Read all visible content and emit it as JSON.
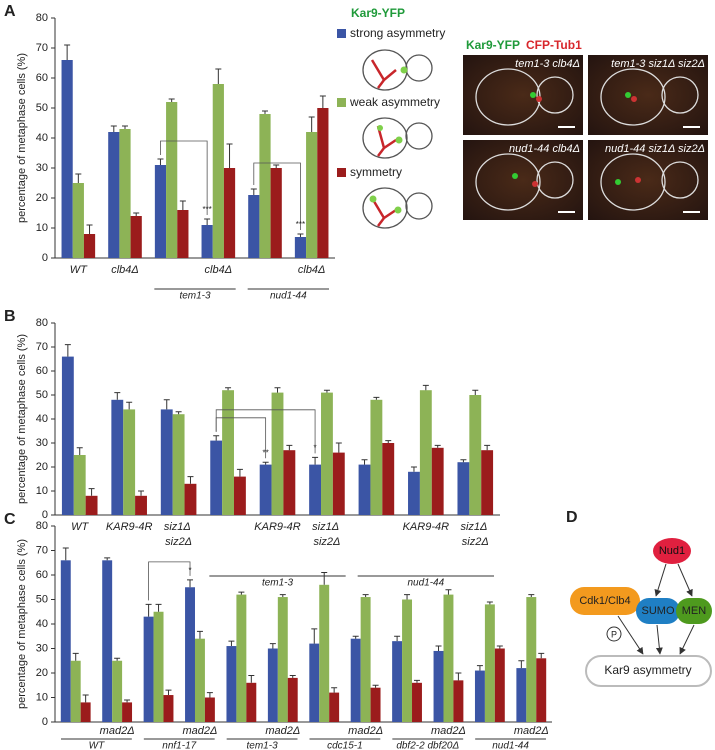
{
  "chart_data": [
    {
      "type": "bar",
      "label": "A",
      "ylabel": "percentage of metaphase cells (%)",
      "categories": [
        "WT",
        "clb4Δ",
        null,
        "clb4Δ",
        null,
        "clb4Δ"
      ],
      "groups": [
        {
          "label": "tem1-3",
          "span": [
            2,
            3
          ]
        },
        {
          "label": "nud1-44",
          "span": [
            4,
            5
          ]
        }
      ],
      "series": [
        {
          "name": "strong asymmetry",
          "color": "#3b55a5",
          "values": [
            66,
            42,
            31,
            11,
            21,
            7
          ],
          "errors": [
            5,
            2,
            2,
            2,
            2,
            1
          ]
        },
        {
          "name": "weak asymmetry",
          "color": "#8db356",
          "values": [
            25,
            43,
            52,
            58,
            48,
            42
          ],
          "errors": [
            3,
            1,
            1,
            5,
            1,
            5
          ]
        },
        {
          "name": "symmetry",
          "color": "#9b1c1c",
          "values": [
            8,
            14,
            16,
            30,
            30,
            50
          ],
          "errors": [
            3,
            1,
            3,
            8,
            1,
            4
          ]
        }
      ],
      "significance": [
        {
          "label": "***",
          "from": 2,
          "to": 3,
          "series": 0
        },
        {
          "label": "***",
          "from": 4,
          "to": 5,
          "series": 0
        }
      ],
      "ylim": [
        0,
        80
      ],
      "yticks": [
        0,
        10,
        20,
        30,
        40,
        50,
        60,
        70,
        80
      ]
    },
    {
      "type": "bar",
      "label": "B",
      "ylabel": "percentage of metaphase cells (%)",
      "categories": [
        "WT",
        "KAR9-4R",
        "siz1Δ siz2Δ",
        null,
        "KAR9-4R",
        "siz1Δ siz2Δ",
        null,
        "KAR9-4R",
        "siz1Δ siz2Δ"
      ],
      "groups": [
        {
          "label": "tem1-3",
          "span": [
            3,
            5
          ]
        },
        {
          "label": "nud1-44",
          "span": [
            6,
            8
          ]
        }
      ],
      "series": [
        {
          "color": "#3b55a5",
          "values": [
            66,
            48,
            44,
            31,
            21,
            21,
            21,
            18,
            22
          ],
          "errors": [
            5,
            3,
            4,
            2,
            1,
            3,
            2,
            2,
            1
          ]
        },
        {
          "color": "#8db356",
          "values": [
            25,
            44,
            42,
            52,
            51,
            51,
            48,
            52,
            50
          ],
          "errors": [
            3,
            3,
            1,
            1,
            2,
            1,
            1,
            2,
            2
          ]
        },
        {
          "color": "#9b1c1c",
          "values": [
            8,
            8,
            13,
            16,
            27,
            26,
            30,
            28,
            27
          ],
          "errors": [
            3,
            2,
            3,
            3,
            2,
            4,
            1,
            1,
            2
          ]
        }
      ],
      "significance": [
        {
          "label": "**",
          "from": 3,
          "to": 4,
          "series": 0
        },
        {
          "label": "*",
          "from": 3,
          "to": 5,
          "series": 0
        }
      ],
      "ylim": [
        0,
        80
      ],
      "yticks": [
        0,
        10,
        20,
        30,
        40,
        50,
        60,
        70,
        80
      ]
    },
    {
      "type": "bar",
      "label": "C",
      "ylabel": "percentage of metaphase cells (%)",
      "categories": [
        null,
        "mad2Δ",
        null,
        "mad2Δ",
        null,
        "mad2Δ",
        null,
        "mad2Δ",
        null,
        "mad2Δ",
        null,
        "mad2Δ"
      ],
      "groups": [
        {
          "label": "WT",
          "span": [
            0,
            1
          ]
        },
        {
          "label": "nnf1-17",
          "span": [
            2,
            3
          ]
        },
        {
          "label": "tem1-3",
          "span": [
            4,
            5
          ]
        },
        {
          "label": "cdc15-1",
          "span": [
            6,
            7
          ]
        },
        {
          "label": "dbf2-2 dbf20Δ",
          "span": [
            8,
            9
          ]
        },
        {
          "label": "nud1-44",
          "span": [
            10,
            11
          ]
        }
      ],
      "series": [
        {
          "color": "#3b55a5",
          "values": [
            66,
            66,
            43,
            55,
            31,
            30,
            32,
            34,
            33,
            29,
            21,
            22
          ],
          "errors": [
            5,
            1,
            5,
            3,
            2,
            2,
            6,
            1,
            2,
            2,
            2,
            3
          ]
        },
        {
          "color": "#8db356",
          "values": [
            25,
            25,
            45,
            34,
            52,
            51,
            56,
            51,
            50,
            52,
            48,
            51
          ],
          "errors": [
            3,
            1,
            3,
            3,
            1,
            1,
            5,
            1,
            2,
            2,
            1,
            1
          ]
        },
        {
          "color": "#9b1c1c",
          "values": [
            8,
            8,
            11,
            10,
            16,
            18,
            12,
            14,
            16,
            17,
            30,
            26
          ],
          "errors": [
            3,
            1,
            2,
            2,
            3,
            1,
            2,
            1,
            1,
            3,
            1,
            2
          ]
        }
      ],
      "significance": [
        {
          "label": "*",
          "from": 2,
          "to": 3,
          "series": 0
        }
      ],
      "ylim": [
        0,
        80
      ],
      "yticks": [
        0,
        10,
        20,
        30,
        40,
        50,
        60,
        70,
        80
      ]
    }
  ],
  "legend_title": "Kar9-YFP",
  "images": {
    "channels": [
      "Kar9-YFP",
      "CFP-Tub1"
    ],
    "panels": [
      "tem1-3 clb4Δ",
      "tem1-3 siz1Δ siz2Δ",
      "nud1-44 clb4Δ",
      "nud1-44 siz1Δ siz2Δ"
    ]
  },
  "diagram": {
    "label": "D",
    "nodes": [
      "Nud1",
      "Cdk1/Clb4",
      "SUMO",
      "MEN",
      "Kar9 asymmetry"
    ],
    "phospho": "P"
  }
}
